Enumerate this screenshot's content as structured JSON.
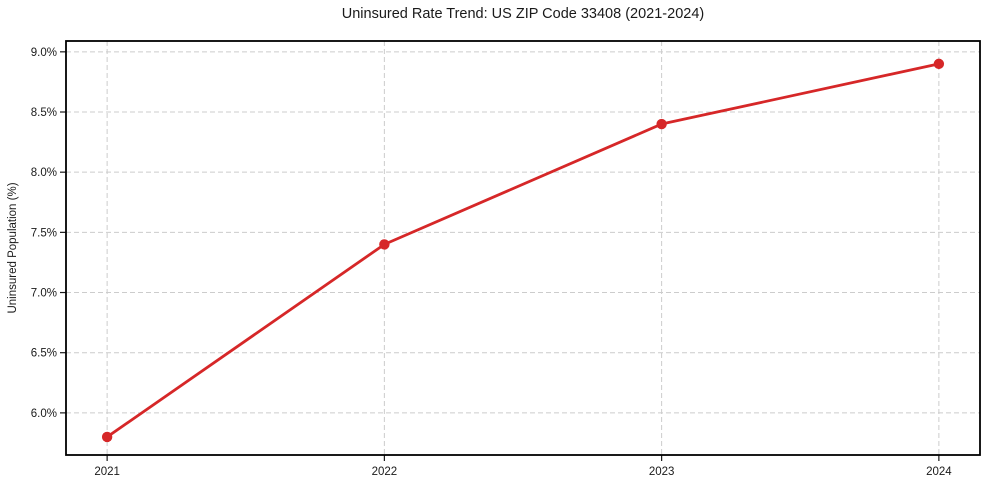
{
  "figure": {
    "background": "#ffffff"
  },
  "chart_data": {
    "type": "line",
    "title": "Uninsured Rate Trend: US ZIP Code 33408 (2021-2024)",
    "xlabel": "",
    "ylabel": "Uninsured Population (%)",
    "categories": [
      "2021",
      "2022",
      "2023",
      "2024"
    ],
    "values": [
      5.8,
      7.4,
      8.4,
      8.9
    ],
    "xtick_labels": [
      "2021",
      "2022",
      "2023",
      "2024"
    ],
    "yticks": [
      6.0,
      6.5,
      7.0,
      7.5,
      8.0,
      8.5,
      9.0
    ],
    "ytick_labels": [
      "6.0%",
      "6.5%",
      "7.0%",
      "7.5%",
      "8.0%",
      "8.5%",
      "9.0%"
    ],
    "ylim": [
      5.65,
      9.09
    ],
    "grid": true,
    "grid_style": "dashed",
    "legend": "none",
    "colors": {
      "line": "#d62728",
      "marker": "#d62728",
      "grid": "#cccccc",
      "axis_border": "#000000",
      "text": "#1a1a1a"
    }
  }
}
